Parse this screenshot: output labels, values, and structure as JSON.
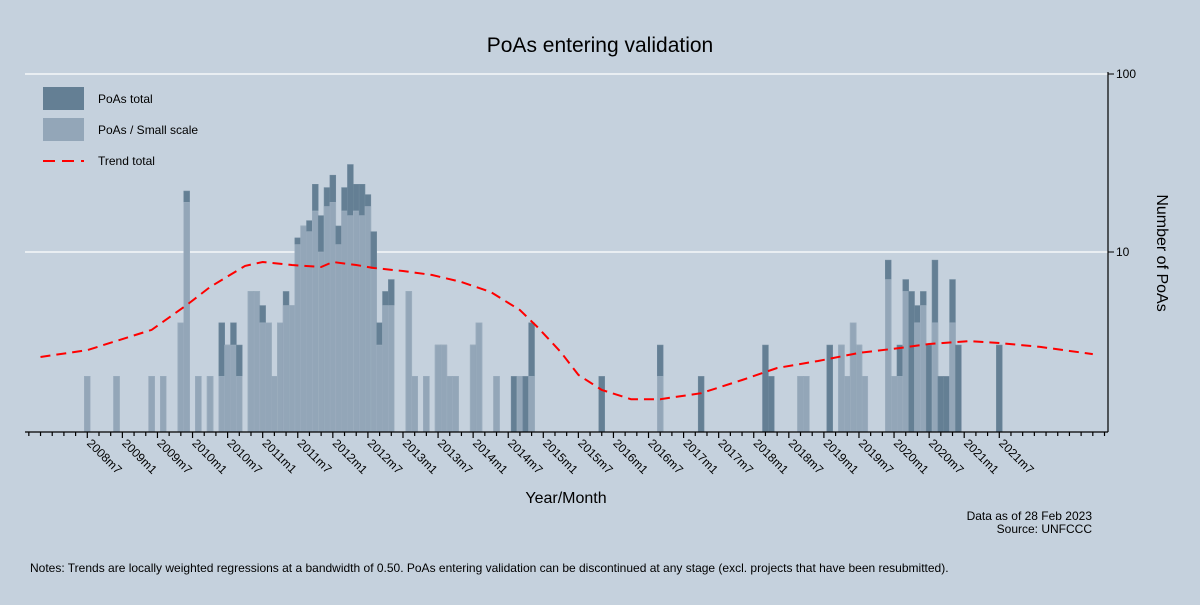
{
  "chart_data": {
    "type": "bar",
    "title": "PoAs entering validation",
    "xlabel": "Year/Month",
    "ylabel": "Number of PoAs",
    "y_scale": "log",
    "ylim": [
      1,
      100
    ],
    "y_ticks": [
      10,
      100
    ],
    "xlim": [
      "2007m8",
      "2023m1"
    ],
    "x_tick_labels": [
      "2008m7",
      "2009m1",
      "2009m7",
      "2010m1",
      "2010m7",
      "2011m1",
      "2011m7",
      "2012m1",
      "2012m7",
      "2013m1",
      "2013m7",
      "2014m1",
      "2014m7",
      "2015m1",
      "2015m7",
      "2016m1",
      "2016m7",
      "2017m1",
      "2017m7",
      "2018m1",
      "2018m7",
      "2019m1",
      "2019m7",
      "2020m1",
      "2020m7",
      "2021m1",
      "2021m7"
    ],
    "grid": true,
    "legend_position": "top-left",
    "legend": [
      {
        "label": "PoAs total",
        "color": "#647f94",
        "kind": "bar"
      },
      {
        "label": "PoAs / Small scale",
        "color": "#93a6b8",
        "kind": "bar"
      },
      {
        "label": "Trend total",
        "color": "#ff0000",
        "kind": "dashed-line"
      }
    ],
    "bars": [
      {
        "month": "2008m7",
        "total": 2,
        "small": 2
      },
      {
        "month": "2008m12",
        "total": 2,
        "small": 2
      },
      {
        "month": "2009m6",
        "total": 2,
        "small": 2
      },
      {
        "month": "2009m8",
        "total": 2,
        "small": 2
      },
      {
        "month": "2009m11",
        "total": 4,
        "small": 4
      },
      {
        "month": "2009m12",
        "total": 22,
        "small": 19
      },
      {
        "month": "2010m2",
        "total": 2,
        "small": 2
      },
      {
        "month": "2010m4",
        "total": 2,
        "small": 2
      },
      {
        "month": "2010m6",
        "total": 4,
        "small": 2
      },
      {
        "month": "2010m7",
        "total": 3,
        "small": 3
      },
      {
        "month": "2010m8",
        "total": 4,
        "small": 3
      },
      {
        "month": "2010m9",
        "total": 3,
        "small": 2
      },
      {
        "month": "2010m11",
        "total": 6,
        "small": 6
      },
      {
        "month": "2010m12",
        "total": 6,
        "small": 6
      },
      {
        "month": "2011m1",
        "total": 5,
        "small": 4
      },
      {
        "month": "2011m2",
        "total": 4,
        "small": 4
      },
      {
        "month": "2011m3",
        "total": 2,
        "small": 2
      },
      {
        "month": "2011m4",
        "total": 4,
        "small": 4
      },
      {
        "month": "2011m5",
        "total": 6,
        "small": 5
      },
      {
        "month": "2011m6",
        "total": 5,
        "small": 5
      },
      {
        "month": "2011m7",
        "total": 12,
        "small": 11
      },
      {
        "month": "2011m8",
        "total": 14,
        "small": 14
      },
      {
        "month": "2011m9",
        "total": 15,
        "small": 13
      },
      {
        "month": "2011m10",
        "total": 24,
        "small": 17
      },
      {
        "month": "2011m11",
        "total": 16,
        "small": 10
      },
      {
        "month": "2011m12",
        "total": 23,
        "small": 18
      },
      {
        "month": "2012m1",
        "total": 27,
        "small": 19
      },
      {
        "month": "2012m2",
        "total": 14,
        "small": 11
      },
      {
        "month": "2012m3",
        "total": 23,
        "small": 17
      },
      {
        "month": "2012m4",
        "total": 31,
        "small": 16
      },
      {
        "month": "2012m5",
        "total": 24,
        "small": 17
      },
      {
        "month": "2012m6",
        "total": 24,
        "small": 16
      },
      {
        "month": "2012m7",
        "total": 21,
        "small": 18
      },
      {
        "month": "2012m8",
        "total": 13,
        "small": 8
      },
      {
        "month": "2012m9",
        "total": 4,
        "small": 3
      },
      {
        "month": "2012m10",
        "total": 6,
        "small": 5
      },
      {
        "month": "2012m11",
        "total": 7,
        "small": 5
      },
      {
        "month": "2013m2",
        "total": 6,
        "small": 6
      },
      {
        "month": "2013m3",
        "total": 2,
        "small": 2
      },
      {
        "month": "2013m5",
        "total": 2,
        "small": 2
      },
      {
        "month": "2013m7",
        "total": 3,
        "small": 3
      },
      {
        "month": "2013m8",
        "total": 3,
        "small": 3
      },
      {
        "month": "2013m9",
        "total": 2,
        "small": 2
      },
      {
        "month": "2013m10",
        "total": 2,
        "small": 2
      },
      {
        "month": "2014m1",
        "total": 3,
        "small": 3
      },
      {
        "month": "2014m2",
        "total": 4,
        "small": 4
      },
      {
        "month": "2014m5",
        "total": 2,
        "small": 2
      },
      {
        "month": "2014m8",
        "total": 2,
        "small": 0
      },
      {
        "month": "2014m9",
        "total": 2,
        "small": 2
      },
      {
        "month": "2014m10",
        "total": 2,
        "small": 0
      },
      {
        "month": "2014m11",
        "total": 4,
        "small": 2
      },
      {
        "month": "2015m11",
        "total": 2,
        "small": 0
      },
      {
        "month": "2016m9",
        "total": 3,
        "small": 2
      },
      {
        "month": "2017m4",
        "total": 2,
        "small": 0
      },
      {
        "month": "2018m3",
        "total": 3,
        "small": 0
      },
      {
        "month": "2018m4",
        "total": 2,
        "small": 0
      },
      {
        "month": "2018m9",
        "total": 2,
        "small": 2
      },
      {
        "month": "2018m10",
        "total": 2,
        "small": 2
      },
      {
        "month": "2019m2",
        "total": 3,
        "small": 0
      },
      {
        "month": "2019m4",
        "total": 3,
        "small": 3
      },
      {
        "month": "2019m5",
        "total": 2,
        "small": 2
      },
      {
        "month": "2019m6",
        "total": 4,
        "small": 4
      },
      {
        "month": "2019m7",
        "total": 3,
        "small": 3
      },
      {
        "month": "2019m8",
        "total": 2,
        "small": 2
      },
      {
        "month": "2019m12",
        "total": 9,
        "small": 7
      },
      {
        "month": "2020m1",
        "total": 2,
        "small": 2
      },
      {
        "month": "2020m2",
        "total": 3,
        "small": 2
      },
      {
        "month": "2020m3",
        "total": 7,
        "small": 6
      },
      {
        "month": "2020m4",
        "total": 6,
        "small": 0
      },
      {
        "month": "2020m5",
        "total": 5,
        "small": 4
      },
      {
        "month": "2020m6",
        "total": 6,
        "small": 5
      },
      {
        "month": "2020m7",
        "total": 3,
        "small": 0
      },
      {
        "month": "2020m8",
        "total": 9,
        "small": 4
      },
      {
        "month": "2020m9",
        "total": 2,
        "small": 0
      },
      {
        "month": "2020m10",
        "total": 2,
        "small": 0
      },
      {
        "month": "2020m11",
        "total": 7,
        "small": 4
      },
      {
        "month": "2020m12",
        "total": 3,
        "small": 0
      },
      {
        "month": "2021m7",
        "total": 3,
        "small": 0
      }
    ],
    "trend": [
      [
        "2007m11",
        2.57
      ],
      [
        "2008m7",
        2.81
      ],
      [
        "2009m6",
        3.65
      ],
      [
        "2009m12",
        5.04
      ],
      [
        "2010m4",
        6.36
      ],
      [
        "2010m10",
        8.35
      ],
      [
        "2011m1",
        8.79
      ],
      [
        "2011m6",
        8.45
      ],
      [
        "2011m11",
        8.24
      ],
      [
        "2012m1",
        8.79
      ],
      [
        "2012m5",
        8.45
      ],
      [
        "2012m8",
        8.13
      ],
      [
        "2013m1",
        7.82
      ],
      [
        "2013m6",
        7.43
      ],
      [
        "2013m11",
        6.78
      ],
      [
        "2014m4",
        5.96
      ],
      [
        "2014m9",
        4.72
      ],
      [
        "2014m12",
        3.79
      ],
      [
        "2015m4",
        2.74
      ],
      [
        "2015m7",
        2.04
      ],
      [
        "2015m11",
        1.68
      ],
      [
        "2016m4",
        1.49
      ],
      [
        "2016m9",
        1.49
      ],
      [
        "2017m4",
        1.61
      ],
      [
        "2017m11",
        1.91
      ],
      [
        "2018m5",
        2.23
      ],
      [
        "2018m12",
        2.44
      ],
      [
        "2019m7",
        2.71
      ],
      [
        "2020m2",
        2.89
      ],
      [
        "2020m7",
        3.04
      ],
      [
        "2021m2",
        3.16
      ],
      [
        "2021m7",
        3.08
      ],
      [
        "2022m2",
        2.93
      ],
      [
        "2022m11",
        2.67
      ]
    ]
  },
  "footer": {
    "data_date": "Data as of 28 Feb 2023",
    "source": "Source: UNFCCC",
    "notes": "Notes: Trends are locally weighted regressions at a bandwidth of 0.50. PoAs entering validation can be discontinued at any stage (excl. projects that have been resubmitted)."
  }
}
